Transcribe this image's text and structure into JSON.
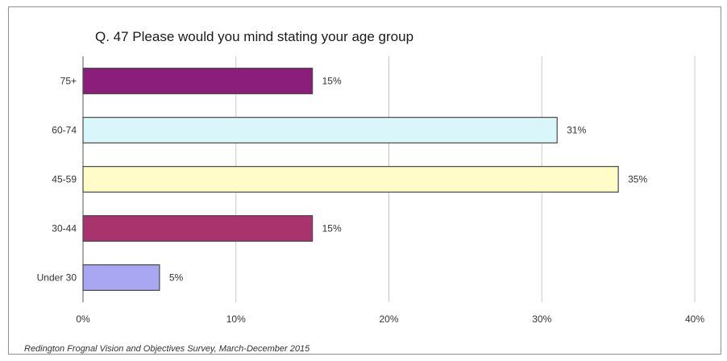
{
  "chart_data": {
    "type": "bar",
    "orientation": "horizontal",
    "title": "Q. 47  Please would you mind stating your age group",
    "categories": [
      "75+",
      "60-74",
      "45-59",
      "30-44",
      "Under 30"
    ],
    "values": [
      15,
      31,
      35,
      15,
      5
    ],
    "data_labels": [
      "15%",
      "31%",
      "35%",
      "15%",
      "5%"
    ],
    "xlim": [
      0,
      40
    ],
    "xticks": [
      "0%",
      "10%",
      "20%",
      "30%",
      "40%"
    ],
    "grid": "vertical",
    "colors": [
      "#8B1E7A",
      "#D9F7FB",
      "#FFFCC8",
      "#A8336D",
      "#A9A6F2"
    ],
    "bar_edge": "#4a4a4a"
  },
  "footer": "Redington Frognal Vision and Objectives Survey, March-December 2015"
}
